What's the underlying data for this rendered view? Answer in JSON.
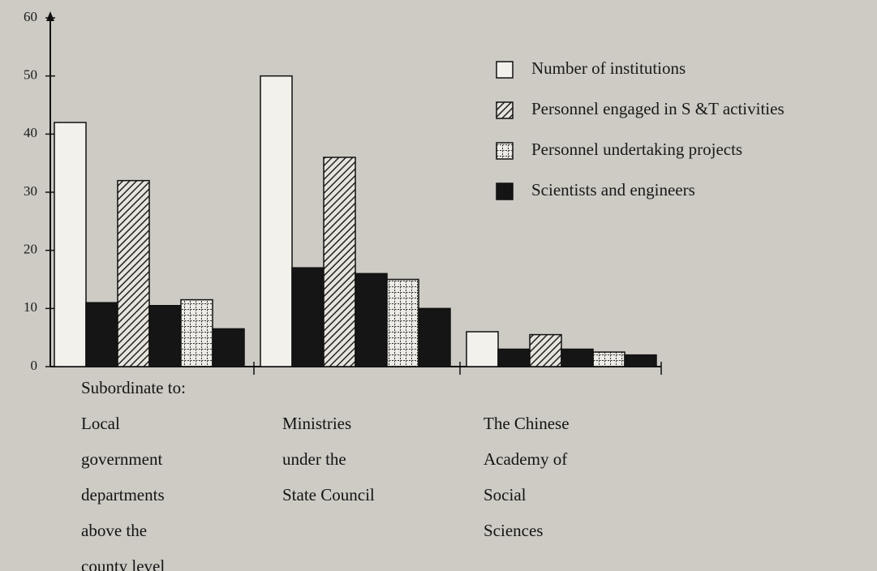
{
  "chart_data": {
    "type": "bar",
    "x_label": "Subordinate to:",
    "categories": [
      "Local government departments above the county level",
      "Ministries under the State Council",
      "The Chinese Academy of Social Sciences"
    ],
    "series": [
      {
        "name": "Number of institutions",
        "color": "#f2f1ec",
        "values": [
          42,
          50,
          6
        ]
      },
      {
        "color": "#151515",
        "values": [
          11,
          17,
          3
        ]
      },
      {
        "name": "Personnel engaged in S &T activities",
        "color": "#e6e4dc",
        "pattern": "hatch",
        "values": [
          32,
          36,
          5.5
        ]
      },
      {
        "color": "#151515",
        "values": [
          10.5,
          16,
          3
        ]
      },
      {
        "name": "Personnel undertaking projects",
        "color": "#ecebe5",
        "pattern": "dots",
        "values": [
          11.5,
          15,
          2.5
        ]
      },
      {
        "name": "Scientists and engineers",
        "color": "#151515",
        "values": [
          6.5,
          10,
          2
        ]
      }
    ],
    "ylim": [
      0,
      60
    ],
    "yticks": [
      0,
      10,
      20,
      30,
      40,
      50,
      60
    ]
  }
}
